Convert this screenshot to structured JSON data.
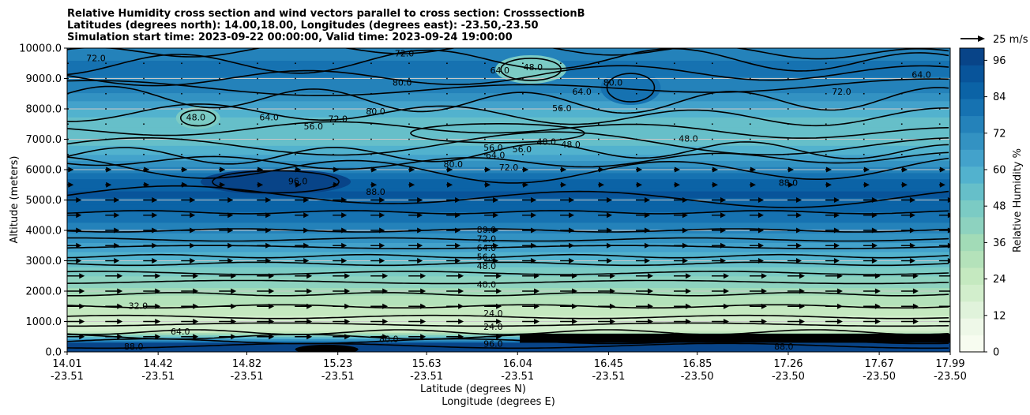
{
  "titles": [
    "Relative Humidity cross section and wind vectors parallel to cross section: CrosssectionB",
    "Latitudes (degrees north): 14.00,18.00, Longitudes (degrees east): -23.50,-23.50",
    "Simulation start time: 2023-09-22 00:00:00, Valid time: 2023-09-24 19:00:00"
  ],
  "colors": {
    "rh_scale": [
      "#f7fcf0",
      "#eef8e8",
      "#e0f3db",
      "#d2eecc",
      "#c5e9c0",
      "#b4e2ba",
      "#a2dbb7",
      "#8dd2bf",
      "#7bcbc4",
      "#66bfc9",
      "#52b2ce",
      "#43a2cb",
      "#3392c2",
      "#2482ba",
      "#1672b1",
      "#0b63a6",
      "#08549a",
      "#084488"
    ],
    "contour_line": "#000000",
    "grid_line": "#c8c8c8",
    "arrow": "#000000"
  },
  "chart_data": {
    "type": "heatmap",
    "xlabel": "Latitude (degrees N)",
    "xlabel2": "Longitude (degrees E)",
    "ylabel": "Altitude (meters)",
    "ylim": [
      0,
      10000
    ],
    "xlim": [
      14.01,
      17.99
    ],
    "yticks": [
      "0.0",
      "1000.0",
      "2000.0",
      "3000.0",
      "4000.0",
      "5000.0",
      "6000.0",
      "7000.0",
      "8000.0",
      "9000.0",
      "10000.0"
    ],
    "xticks_lat": [
      "14.01",
      "14.42",
      "14.82",
      "15.23",
      "15.63",
      "16.04",
      "16.45",
      "16.85",
      "17.26",
      "17.67",
      "17.99"
    ],
    "xticks_lon": [
      "-23.51",
      "-23.51",
      "-23.51",
      "-23.51",
      "-23.51",
      "-23.51",
      "-23.51",
      "-23.50",
      "-23.50",
      "-23.50",
      "-23.50"
    ],
    "grid": "horizontal",
    "colorbar": {
      "label": "Relative Humidity %",
      "ticks": [
        "0",
        "12",
        "24",
        "36",
        "48",
        "60",
        "72",
        "84",
        "96"
      ],
      "range": [
        0,
        100
      ]
    },
    "quiver_key": "25 m/s",
    "rh_profile": [
      {
        "altitude": 0,
        "rh": 92
      },
      {
        "altitude": 300,
        "rh": 85
      },
      {
        "altitude": 700,
        "rh": 22
      },
      {
        "altitude": 1200,
        "rh": 22
      },
      {
        "altitude": 1700,
        "rh": 30
      },
      {
        "altitude": 2200,
        "rh": 40
      },
      {
        "altitude": 2800,
        "rh": 50
      },
      {
        "altitude": 3200,
        "rh": 60
      },
      {
        "altitude": 3800,
        "rh": 70
      },
      {
        "altitude": 4500,
        "rh": 82
      },
      {
        "altitude": 5200,
        "rh": 90
      },
      {
        "altitude": 5800,
        "rh": 82
      },
      {
        "altitude": 6400,
        "rh": 64
      },
      {
        "altitude": 7000,
        "rh": 50
      },
      {
        "altitude": 7600,
        "rh": 52
      },
      {
        "altitude": 8400,
        "rh": 70
      },
      {
        "altitude": 9200,
        "rh": 80
      },
      {
        "altitude": 10000,
        "rh": 75
      }
    ],
    "contour_labels": [
      {
        "text": "72.0",
        "x": 14.14,
        "y": 9650
      },
      {
        "text": "72.0",
        "x": 15.53,
        "y": 9800
      },
      {
        "text": "72.0",
        "x": 17.5,
        "y": 8550
      },
      {
        "text": "64.0",
        "x": 15.96,
        "y": 9250
      },
      {
        "text": "48.0",
        "x": 16.11,
        "y": 9350
      },
      {
        "text": "80.0",
        "x": 15.52,
        "y": 8850
      },
      {
        "text": "80.0",
        "x": 16.47,
        "y": 8850
      },
      {
        "text": "64.0",
        "x": 16.33,
        "y": 8550
      },
      {
        "text": "56.0",
        "x": 16.24,
        "y": 8000
      },
      {
        "text": "64.0",
        "x": 14.92,
        "y": 7700
      },
      {
        "text": "56.0",
        "x": 15.12,
        "y": 7400
      },
      {
        "text": "72.0",
        "x": 15.23,
        "y": 7650
      },
      {
        "text": "80.0",
        "x": 15.4,
        "y": 7900
      },
      {
        "text": "48.0",
        "x": 14.59,
        "y": 7700
      },
      {
        "text": "56.0",
        "x": 15.93,
        "y": 6700
      },
      {
        "text": "56.0",
        "x": 16.06,
        "y": 6650
      },
      {
        "text": "64.0",
        "x": 15.94,
        "y": 6450
      },
      {
        "text": "72.0",
        "x": 16.0,
        "y": 6050
      },
      {
        "text": "80.0",
        "x": 15.75,
        "y": 6150
      },
      {
        "text": "48.0",
        "x": 16.17,
        "y": 6900
      },
      {
        "text": "48.0",
        "x": 16.28,
        "y": 6800
      },
      {
        "text": "48.0",
        "x": 16.81,
        "y": 7000
      },
      {
        "text": "96.0",
        "x": 15.05,
        "y": 5600
      },
      {
        "text": "88.0",
        "x": 15.4,
        "y": 5250
      },
      {
        "text": "88.0",
        "x": 17.26,
        "y": 5550
      },
      {
        "text": "80.0",
        "x": 15.9,
        "y": 4000
      },
      {
        "text": "72.0",
        "x": 15.9,
        "y": 3700
      },
      {
        "text": "64.0",
        "x": 15.9,
        "y": 3400
      },
      {
        "text": "56.0",
        "x": 15.9,
        "y": 3100
      },
      {
        "text": "48.0",
        "x": 15.9,
        "y": 2800
      },
      {
        "text": "40.0",
        "x": 15.9,
        "y": 2200
      },
      {
        "text": "32.0",
        "x": 14.33,
        "y": 1500
      },
      {
        "text": "24.0",
        "x": 15.93,
        "y": 1250
      },
      {
        "text": "24.0",
        "x": 15.93,
        "y": 800
      },
      {
        "text": "64.0",
        "x": 14.52,
        "y": 650
      },
      {
        "text": "80.0",
        "x": 15.46,
        "y": 400
      },
      {
        "text": "96.0",
        "x": 15.93,
        "y": 250
      },
      {
        "text": "88.0",
        "x": 14.31,
        "y": 150
      },
      {
        "text": "88.0",
        "x": 17.24,
        "y": 150
      },
      {
        "text": "64.0",
        "x": 17.86,
        "y": 9100
      }
    ]
  }
}
